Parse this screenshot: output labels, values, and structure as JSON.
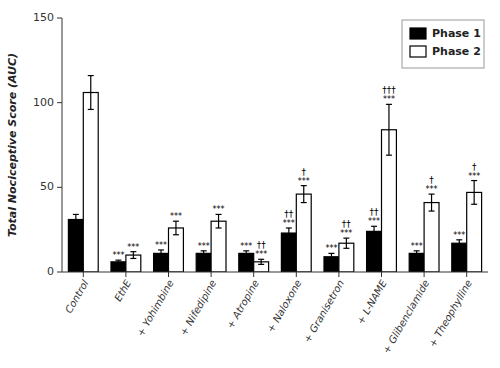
{
  "chart_data": {
    "type": "bar",
    "categories": [
      "Control",
      "EthE",
      "+ Yohimbine",
      "+ Nifedipine",
      "+ Atropine",
      "+ Naloxone",
      "+ Granisetron",
      "+ L-NAME",
      "+ Glibenclamide",
      "+ Theophylline"
    ],
    "series": [
      {
        "name": "Phase 1",
        "color": "#000000",
        "values": [
          31,
          6,
          11,
          11,
          11,
          23,
          9,
          24,
          11,
          17
        ],
        "errors": [
          3,
          1,
          2,
          1.5,
          1.5,
          3,
          2,
          3,
          1.5,
          2
        ],
        "significance": [
          null,
          "***",
          "***",
          "***",
          "***",
          "***",
          "***",
          "***",
          "***",
          "***"
        ],
        "dagger": [
          null,
          null,
          null,
          null,
          null,
          "††",
          null,
          "††",
          null,
          null
        ]
      },
      {
        "name": "Phase 2",
        "color": "#ffffff",
        "values": [
          106,
          10,
          26,
          30,
          6,
          46,
          17,
          84,
          41,
          47
        ],
        "errors": [
          10,
          2,
          4,
          4,
          1.5,
          5,
          3,
          15,
          5,
          7
        ],
        "significance": [
          null,
          "***",
          "***",
          "***",
          "***",
          "***",
          "***",
          "***",
          "***",
          "***"
        ],
        "dagger": [
          null,
          null,
          null,
          null,
          "††",
          "†",
          "††",
          "†††",
          "†",
          "†"
        ]
      }
    ],
    "edge_color": "#000000",
    "ylabel": "Total Nociceptive Score (AUC)",
    "ylim": [
      0,
      150
    ],
    "yticks": [
      0,
      50,
      100,
      150
    ],
    "legend": "upper right"
  }
}
